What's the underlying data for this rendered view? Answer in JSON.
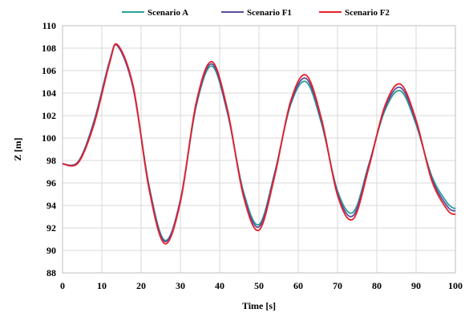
{
  "chart_data": {
    "type": "line",
    "title": "",
    "xlabel": "Time [s]",
    "ylabel": "Z [m]",
    "xlim": [
      0,
      100
    ],
    "ylim": [
      88,
      110
    ],
    "xticks": [
      0,
      10,
      20,
      30,
      40,
      50,
      60,
      70,
      80,
      90,
      100
    ],
    "yticks": [
      88,
      90,
      92,
      94,
      96,
      98,
      100,
      102,
      104,
      106,
      108,
      110
    ],
    "grid": true,
    "legend": "top",
    "series": [
      {
        "name": "Scenario A",
        "color": "#2aa198",
        "x": [
          0,
          4,
          8,
          12,
          14,
          18,
          22,
          26,
          30,
          34,
          38,
          42,
          46,
          50,
          54,
          58,
          62,
          66,
          70,
          74,
          78,
          82,
          86,
          90,
          94,
          98,
          100
        ],
        "y": [
          97.7,
          97.9,
          101.5,
          106.9,
          108.2,
          104.5,
          95.8,
          90.9,
          94.4,
          102.8,
          106.4,
          102.2,
          95.3,
          92.3,
          96.9,
          102.9,
          105.0,
          101.2,
          95.3,
          93.4,
          97.7,
          102.4,
          104.2,
          101.2,
          96.6,
          94.2,
          93.7
        ]
      },
      {
        "name": "Scenario F1",
        "color": "#5b4c9e",
        "x": [
          0,
          4,
          8,
          12,
          14,
          18,
          22,
          26,
          30,
          34,
          38,
          42,
          46,
          50,
          54,
          58,
          62,
          66,
          70,
          74,
          78,
          82,
          86,
          90,
          94,
          98,
          100
        ],
        "y": [
          97.7,
          97.9,
          101.4,
          106.8,
          108.2,
          104.4,
          95.7,
          90.8,
          94.5,
          102.9,
          106.6,
          102.3,
          95.1,
          92.1,
          96.8,
          103.0,
          105.3,
          101.4,
          95.1,
          93.1,
          97.6,
          102.6,
          104.5,
          101.4,
          96.4,
          93.9,
          93.5
        ]
      },
      {
        "name": "Scenario F2",
        "color": "#e8202a",
        "x": [
          0,
          4,
          8,
          12,
          14,
          18,
          22,
          26,
          30,
          34,
          38,
          42,
          46,
          50,
          54,
          58,
          62,
          66,
          70,
          74,
          78,
          82,
          86,
          90,
          94,
          98,
          100
        ],
        "y": [
          97.7,
          97.8,
          101.2,
          106.7,
          108.3,
          104.6,
          95.5,
          90.6,
          94.3,
          103.1,
          106.8,
          102.5,
          94.9,
          91.8,
          96.6,
          103.2,
          105.6,
          101.6,
          94.9,
          92.8,
          97.4,
          102.8,
          104.8,
          101.6,
          96.2,
          93.6,
          93.2
        ]
      }
    ]
  }
}
